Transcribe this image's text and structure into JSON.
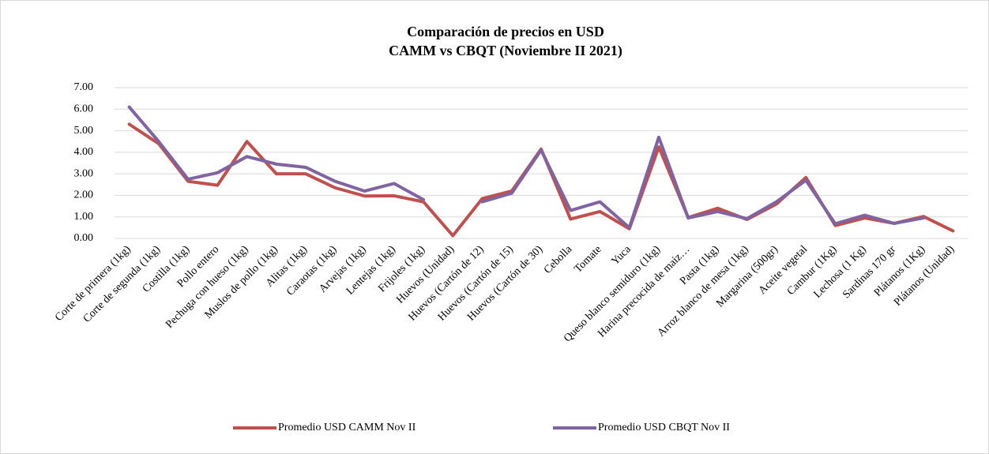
{
  "chart_data": {
    "type": "line",
    "title": "Comparación de precios en USD",
    "subtitle": "CAMM vs CBQT (Noviembre II 2021)",
    "categories": [
      "Corte de primera (1kg)",
      "Corte de segunda (1kg)",
      "Costilla (1kg)",
      "Pollo entero",
      "Pechuga con hueso (1kg)",
      "Muslos de pollo (1kg)",
      "Alitas (1kg)",
      "Caraotas (1kg)",
      "Arvejas (1kg)",
      "Lentejas (1kg)",
      "Frijoles (1kg)",
      "Huevos (Unidad)",
      "Huevos (Cartón de 12)",
      "Huevos (Cartón de 15)",
      "Huevos (Cartón de 30)",
      "Cebolla",
      "Tomate",
      "Yuca",
      "Queso blanco semiduro (1kg)",
      "Harina precocida de maiz…",
      "Pasta (1kg)",
      "Arroz blanco de mesa (1kg)",
      "Margarina (500gr)",
      "Aceite vegetal",
      "Cambur (1Kg)",
      "Lechosa (1 Kg)",
      "Sardinas 170 gr",
      "Plátanos (1Kg)",
      "Plátanos (Unidad)"
    ],
    "series": [
      {
        "name": "Promedio USD CAMM Nov II",
        "color": "#c0504d",
        "values": [
          5.3,
          4.4,
          2.65,
          2.47,
          4.5,
          3.0,
          3.0,
          2.35,
          1.97,
          1.98,
          1.7,
          0.13,
          1.85,
          2.2,
          4.15,
          0.9,
          1.25,
          0.45,
          4.25,
          0.97,
          1.4,
          0.88,
          1.6,
          2.83,
          0.6,
          0.95,
          0.7,
          1.02,
          0.35
        ]
      },
      {
        "name": "Promedio USD CBQT Nov II",
        "color": "#8064a2",
        "values": [
          6.1,
          4.5,
          2.75,
          3.05,
          3.8,
          3.45,
          3.3,
          2.65,
          2.2,
          2.55,
          1.8,
          null,
          1.7,
          2.1,
          4.1,
          1.3,
          1.7,
          0.5,
          4.7,
          0.95,
          1.25,
          0.92,
          1.7,
          2.7,
          0.68,
          1.08,
          0.7,
          0.95,
          null
        ]
      }
    ],
    "ylim": [
      0,
      7
    ],
    "yticks": [
      {
        "value": 0,
        "label": "0.00"
      },
      {
        "value": 1,
        "label": "1.00"
      },
      {
        "value": 2,
        "label": "2.00"
      },
      {
        "value": 3,
        "label": "3.00"
      },
      {
        "value": 4,
        "label": "4.00"
      },
      {
        "value": 5,
        "label": "5.00"
      },
      {
        "value": 6,
        "label": "6.00"
      },
      {
        "value": 7,
        "label": "7.00"
      }
    ],
    "grid": true,
    "legend": "bottom"
  }
}
